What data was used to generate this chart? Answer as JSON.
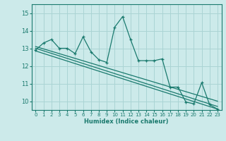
{
  "xlabel": "Humidex (Indice chaleur)",
  "bg_color": "#cceaea",
  "grid_color": "#aad4d4",
  "line_color": "#1a7a6e",
  "xlim": [
    -0.5,
    23.5
  ],
  "ylim": [
    9.5,
    15.5
  ],
  "yticks": [
    10,
    11,
    12,
    13,
    14,
    15
  ],
  "xticks": [
    0,
    1,
    2,
    3,
    4,
    5,
    6,
    7,
    8,
    9,
    10,
    11,
    12,
    13,
    14,
    15,
    16,
    17,
    18,
    19,
    20,
    21,
    22,
    23
  ],
  "series1_x": [
    0,
    1,
    2,
    3,
    4,
    5,
    6,
    7,
    8,
    9,
    10,
    11,
    12,
    13,
    14,
    15,
    16,
    17,
    18,
    19,
    20,
    21,
    22,
    23
  ],
  "series1_y": [
    12.9,
    13.3,
    13.5,
    13.0,
    13.0,
    12.7,
    13.65,
    12.8,
    12.35,
    12.2,
    14.2,
    14.8,
    13.5,
    12.3,
    12.3,
    12.3,
    12.4,
    10.8,
    10.8,
    9.95,
    9.85,
    11.05,
    9.8,
    9.55
  ],
  "series2_x": [
    0,
    23
  ],
  "series2_y": [
    13.1,
    10.0
  ],
  "series3_x": [
    0,
    23
  ],
  "series3_y": [
    13.0,
    9.7
  ],
  "series4_x": [
    0,
    23
  ],
  "series4_y": [
    12.85,
    9.55
  ]
}
